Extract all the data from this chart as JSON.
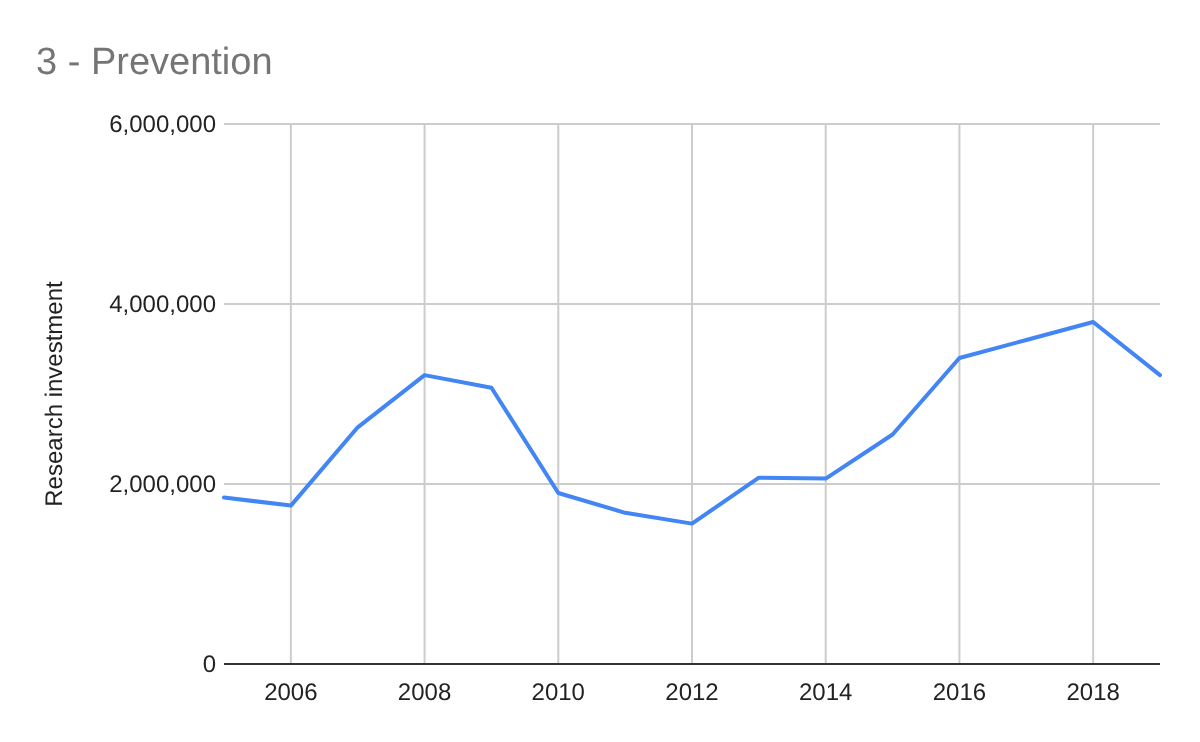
{
  "chart_data": {
    "type": "line",
    "title": "3 - Prevention",
    "ylabel": "Research investment",
    "x": [
      2005,
      2006,
      2007,
      2008,
      2009,
      2010,
      2011,
      2012,
      2013,
      2014,
      2015,
      2016,
      2017,
      2018,
      2019
    ],
    "series": [
      {
        "color": "#4285f4",
        "values": [
          1850000,
          1760000,
          2630000,
          3210000,
          3070000,
          1900000,
          1680000,
          1560000,
          2070000,
          2060000,
          2550000,
          3400000,
          3600000,
          3800000,
          3210000
        ]
      }
    ],
    "xlim": [
      2005,
      2019
    ],
    "xticks": [
      2006,
      2008,
      2010,
      2012,
      2014,
      2016,
      2018
    ],
    "ylim": [
      0,
      6000000
    ],
    "yticks": [
      {
        "value": 0,
        "label": "0"
      },
      {
        "value": 2000000,
        "label": "2,000,000"
      },
      {
        "value": 4000000,
        "label": "4,000,000"
      },
      {
        "value": 6000000,
        "label": "6,000,000"
      }
    ],
    "grid": true,
    "marker": "none",
    "line_style": "solid"
  }
}
